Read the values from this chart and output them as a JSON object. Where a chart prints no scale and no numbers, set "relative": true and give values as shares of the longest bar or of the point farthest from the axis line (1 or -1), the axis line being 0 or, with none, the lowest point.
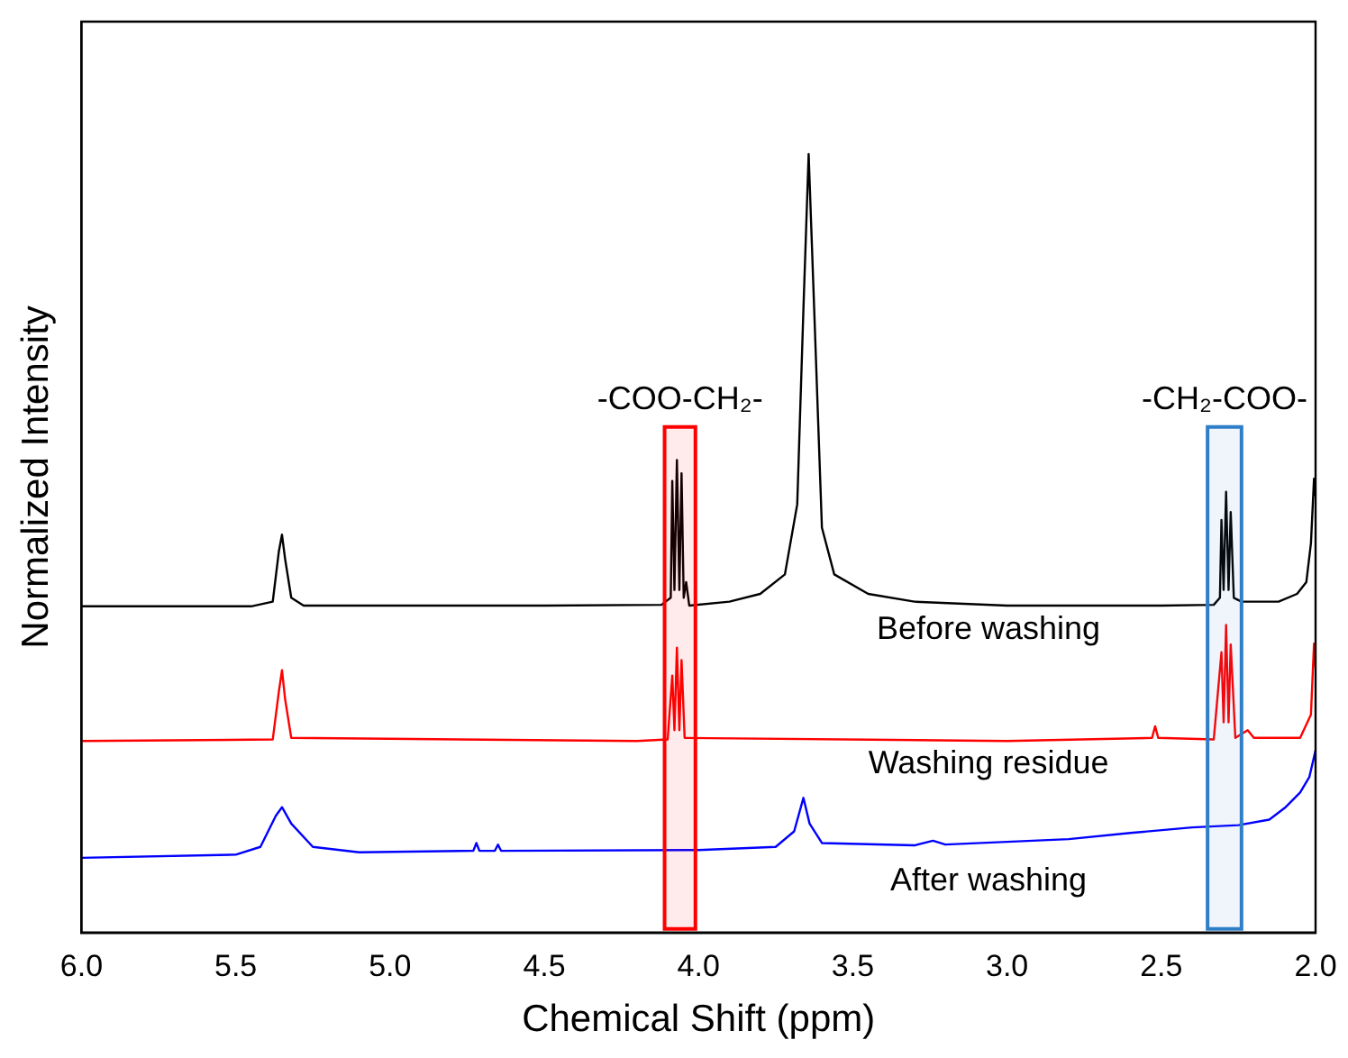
{
  "chart_data": {
    "type": "line",
    "xlabel": "Chemical Shift (ppm)",
    "ylabel": "Normalized Intensity",
    "relative": true,
    "marker": "none",
    "line_style": "solid",
    "xlim": [
      6.0,
      2.0
    ],
    "xticks": [
      {
        "value": 6,
        "label": "6.0"
      },
      5.5,
      {
        "value": 5,
        "label": "5.0"
      },
      4.5,
      {
        "value": 4,
        "label": "4.0"
      },
      3.5,
      {
        "value": 3,
        "label": "3.0"
      },
      2.5,
      {
        "value": 2,
        "label": "2.0"
      }
    ],
    "bands": [
      {
        "axis": "x",
        "from": 4.11,
        "to": 4.01,
        "label": "-COO-CH₂-",
        "color": "#ff0000"
      },
      {
        "axis": "x",
        "from": 2.35,
        "to": 2.24,
        "label": "-CH₂-COO-",
        "color": "#2f7fc8"
      }
    ],
    "series": [
      {
        "name": "Before washing",
        "color": "#000000",
        "x": [
          6.0,
          5.45,
          5.38,
          5.36,
          5.35,
          5.34,
          5.32,
          5.28,
          4.5,
          4.12,
          4.09,
          4.085,
          4.078,
          4.07,
          4.062,
          4.055,
          4.048,
          4.04,
          4.03,
          3.9,
          3.8,
          3.72,
          3.68,
          3.66,
          3.643,
          3.625,
          3.6,
          3.56,
          3.45,
          3.3,
          3.0,
          2.5,
          2.33,
          2.31,
          2.305,
          2.298,
          2.29,
          2.282,
          2.275,
          2.265,
          2.24,
          2.12,
          2.06,
          2.03,
          2.015,
          2.005,
          2.0
        ],
        "values": [
          0.419,
          0.419,
          0.425,
          0.49,
          0.511,
          0.48,
          0.43,
          0.42,
          0.42,
          0.421,
          0.43,
          0.58,
          0.44,
          0.607,
          0.44,
          0.59,
          0.43,
          0.45,
          0.42,
          0.425,
          0.435,
          0.46,
          0.55,
          0.8,
          1.0,
          0.8,
          0.52,
          0.46,
          0.435,
          0.425,
          0.42,
          0.42,
          0.421,
          0.43,
          0.53,
          0.44,
          0.566,
          0.44,
          0.54,
          0.43,
          0.425,
          0.425,
          0.435,
          0.45,
          0.5,
          0.583,
          0.56
        ]
      },
      {
        "name": "Washing residue",
        "color": "#ff0000",
        "x": [
          6.0,
          5.38,
          5.36,
          5.35,
          5.34,
          5.32,
          4.2,
          4.1,
          4.085,
          4.078,
          4.07,
          4.062,
          4.055,
          4.045,
          3.0,
          2.53,
          2.52,
          2.51,
          2.33,
          2.305,
          2.298,
          2.29,
          2.282,
          2.275,
          2.26,
          2.22,
          2.2,
          2.05,
          2.015,
          2.005,
          2.0
        ],
        "values": [
          0.246,
          0.248,
          0.31,
          0.337,
          0.3,
          0.25,
          0.246,
          0.248,
          0.33,
          0.26,
          0.366,
          0.26,
          0.35,
          0.25,
          0.246,
          0.25,
          0.265,
          0.25,
          0.248,
          0.36,
          0.27,
          0.395,
          0.27,
          0.37,
          0.25,
          0.26,
          0.25,
          0.25,
          0.28,
          0.371,
          0.34
        ]
      },
      {
        "name": "After washing",
        "color": "#0000ff",
        "x": [
          6.0,
          5.5,
          5.42,
          5.37,
          5.35,
          5.32,
          5.25,
          5.1,
          4.73,
          4.72,
          4.71,
          4.66,
          4.65,
          4.64,
          4.0,
          3.75,
          3.69,
          3.66,
          3.64,
          3.6,
          3.3,
          3.24,
          3.2,
          2.8,
          2.6,
          2.4,
          2.25,
          2.15,
          2.1,
          2.05,
          2.02,
          2.0
        ],
        "values": [
          0.096,
          0.1,
          0.11,
          0.15,
          0.161,
          0.14,
          0.11,
          0.103,
          0.105,
          0.115,
          0.105,
          0.105,
          0.113,
          0.105,
          0.106,
          0.11,
          0.13,
          0.173,
          0.14,
          0.115,
          0.112,
          0.118,
          0.113,
          0.12,
          0.128,
          0.135,
          0.138,
          0.145,
          0.16,
          0.18,
          0.2,
          0.234
        ]
      }
    ]
  }
}
